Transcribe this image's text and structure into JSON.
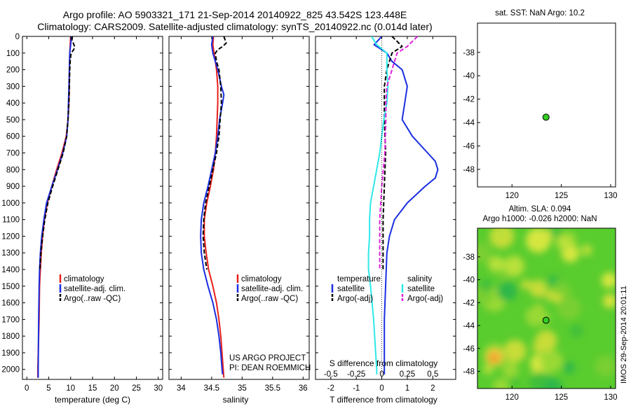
{
  "title_line1": "Argo profile: AO 5903321_171 21-Sep-2014 20140922_825 43.542S 123.448E",
  "title_line2": "Climatology: CARS2009. Satellite-adjusted climatology: synTS_20140922.nc (0.014d later)",
  "project_line1": "US ARGO PROJECT",
  "project_line2": "PI: DEAN ROEMMICH",
  "side_text": "IMOS 29-Sep-2014 20:01:11",
  "depth_ticks": [
    0,
    100,
    200,
    300,
    400,
    500,
    600,
    700,
    800,
    900,
    1000,
    1100,
    1200,
    1300,
    1400,
    1500,
    1600,
    1700,
    1800,
    1900,
    2000
  ],
  "colors": {
    "climatology": "#e8201c",
    "satellite": "#1a2ee0",
    "argo": "#000000",
    "salinity_sat": "#2ee8e8",
    "salinity_argo": "#e020e0",
    "marker": "#33cc22"
  },
  "chart_data": [
    {
      "type": "line",
      "xlabel": "temperature (deg C)",
      "xlim": [
        -1,
        31
      ],
      "xticks": [
        0,
        5,
        10,
        15,
        20,
        25,
        30
      ],
      "ylim": [
        2060,
        0
      ],
      "legend": [
        "climatology",
        "satellite-adj. clim.",
        "Argo(..raw -QC)"
      ],
      "series": [
        {
          "name": "climatology",
          "color": "#e8201c",
          "depth": [
            0,
            50,
            100,
            200,
            300,
            400,
            500,
            600,
            700,
            800,
            900,
            1000,
            1100,
            1200,
            1300,
            1400,
            1500,
            1700,
            2000,
            2050
          ],
          "values": [
            10.0,
            9.9,
            9.8,
            9.7,
            9.7,
            9.6,
            9.4,
            9.0,
            8.0,
            6.8,
            5.7,
            4.7,
            4.0,
            3.6,
            3.3,
            3.1,
            2.9,
            2.8,
            2.5,
            2.5
          ]
        },
        {
          "name": "satellite-adj. clim.",
          "color": "#1a2ee0",
          "depth": [
            0,
            50,
            100,
            200,
            300,
            400,
            500,
            600,
            700,
            800,
            900,
            1000,
            1100,
            1200,
            1300,
            1400,
            1500,
            1700,
            2000,
            2050
          ],
          "values": [
            10.2,
            10.0,
            9.8,
            9.7,
            9.6,
            9.5,
            9.4,
            9.1,
            8.2,
            7.0,
            5.7,
            4.5,
            3.9,
            3.4,
            3.1,
            2.9,
            2.8,
            2.7,
            2.6,
            2.6
          ]
        },
        {
          "name": "Argo(..raw -QC)",
          "color": "#000000",
          "dash": true,
          "depth": [
            0,
            20,
            40,
            60,
            80,
            100,
            150,
            200,
            300,
            400,
            500,
            600,
            700,
            800,
            900,
            1000,
            1100,
            1200,
            1300,
            1400
          ],
          "values": [
            10.4,
            10.3,
            10.6,
            10.9,
            10.7,
            10.1,
            9.9,
            9.8,
            9.7,
            9.6,
            9.4,
            9.1,
            8.3,
            7.1,
            5.9,
            4.8,
            4.1,
            3.6,
            3.2,
            3.0
          ]
        }
      ]
    },
    {
      "type": "line",
      "xlabel": "salinity",
      "xlim": [
        33.8,
        36.1
      ],
      "xticks": [
        34,
        34.5,
        35,
        35.5,
        36
      ],
      "ylim": [
        2060,
        0
      ],
      "legend": [
        "climatology",
        "satellite-adj. clim.",
        "Argo(..raw -QC)"
      ],
      "series": [
        {
          "name": "climatology",
          "color": "#e8201c",
          "depth": [
            0,
            50,
            100,
            150,
            200,
            300,
            400,
            500,
            600,
            700,
            800,
            900,
            1000,
            1100,
            1200,
            1300,
            1400,
            1500,
            1600,
            1700,
            1800,
            1900,
            2000,
            2050
          ],
          "values": [
            34.53,
            34.52,
            34.54,
            34.56,
            34.58,
            34.6,
            34.6,
            34.59,
            34.58,
            34.56,
            34.53,
            34.48,
            34.42,
            34.38,
            34.38,
            34.41,
            34.45,
            34.52,
            34.58,
            34.62,
            34.65,
            34.67,
            34.69,
            34.7
          ]
        },
        {
          "name": "satellite-adj. clim.",
          "color": "#1a2ee0",
          "depth": [
            0,
            50,
            100,
            150,
            200,
            300,
            350,
            400,
            500,
            600,
            700,
            800,
            900,
            1000,
            1100,
            1200,
            1300,
            1400,
            1500,
            1600,
            1700,
            1800,
            1900,
            2000,
            2030
          ],
          "values": [
            34.52,
            34.5,
            34.52,
            34.56,
            34.6,
            34.66,
            34.7,
            34.68,
            34.63,
            34.6,
            34.56,
            34.5,
            34.44,
            34.37,
            34.33,
            34.32,
            34.33,
            34.37,
            34.44,
            34.52,
            34.58,
            34.62,
            34.65,
            34.67,
            34.68
          ]
        },
        {
          "name": "Argo(..raw -QC)",
          "color": "#000000",
          "dash": true,
          "depth": [
            0,
            20,
            40,
            60,
            80,
            100,
            150,
            200,
            300,
            400,
            500,
            600,
            700,
            800,
            900,
            1000,
            1100,
            1200,
            1300,
            1400
          ],
          "values": [
            34.7,
            34.72,
            34.74,
            34.68,
            34.6,
            34.56,
            34.58,
            34.62,
            34.65,
            34.66,
            34.64,
            34.62,
            34.58,
            34.52,
            34.46,
            34.4,
            34.37,
            34.36,
            34.38,
            34.42
          ]
        }
      ]
    },
    {
      "type": "line",
      "xlabel": "T difference from climatology",
      "xlabel_top": "S difference from climatology",
      "xlim": [
        -2.6,
        2.9
      ],
      "xticks": [
        -2,
        -1,
        0,
        1,
        2
      ],
      "xticks_top": [
        "-0.5",
        "-0.25",
        "0",
        "0.25",
        "0.5"
      ],
      "ylim": [
        2060,
        0
      ],
      "legend_groups": [
        {
          "title": "temperature",
          "items": [
            "satellite",
            "Argo(-adj)"
          ]
        },
        {
          "title": "salinity",
          "items": [
            "satellite",
            "Argo(-adj)"
          ]
        }
      ],
      "series": [
        {
          "name": "T satellite",
          "color": "#1a2ee0",
          "depth": [
            0,
            50,
            100,
            150,
            200,
            300,
            400,
            500,
            600,
            700,
            750,
            800,
            850,
            900,
            1000,
            1100,
            1200,
            1300,
            1500,
            1700,
            1900,
            2000,
            2030
          ],
          "values": [
            0.0,
            -0.3,
            0.2,
            0.4,
            0.8,
            1.0,
            0.9,
            0.8,
            1.2,
            1.8,
            2.1,
            2.2,
            2.1,
            1.7,
            1.0,
            0.5,
            0.3,
            0.2,
            0.15,
            0.1,
            0.1,
            0.1,
            0.1
          ]
        },
        {
          "name": "T Argo(-adj)",
          "color": "#000000",
          "dash": true,
          "depth": [
            0,
            30,
            60,
            100,
            200,
            300,
            400,
            500,
            700,
            900,
            1100,
            1300,
            1400
          ],
          "values": [
            0.4,
            0.6,
            0.8,
            0.4,
            0.2,
            0.1,
            0.1,
            0.1,
            0.15,
            0.1,
            0.05,
            0.05,
            0.05
          ]
        },
        {
          "name": "S satellite",
          "color": "#2ee8e8",
          "depth": [
            0,
            50,
            100,
            200,
            300,
            400,
            500,
            600,
            700,
            800,
            900,
            1000,
            1100,
            1200,
            1300,
            1400,
            1500,
            1700,
            1900,
            2000,
            2030
          ],
          "values": [
            -0.1,
            -0.05,
            0.05,
            0.05,
            0.06,
            0.05,
            0.02,
            0.0,
            -0.02,
            -0.05,
            -0.08,
            -0.11,
            -0.12,
            -0.12,
            -0.13,
            -0.13,
            -0.11,
            -0.08,
            -0.06,
            -0.05,
            -0.05
          ]
        },
        {
          "name": "S Argo(-adj)",
          "color": "#e020e0",
          "dash": true,
          "depth": [
            0,
            30,
            60,
            100,
            200,
            300,
            400,
            500,
            700,
            900,
            1100,
            1300,
            1400
          ],
          "values": [
            0.35,
            0.3,
            0.25,
            0.15,
            0.1,
            0.05,
            0.04,
            0.04,
            0.03,
            0.0,
            -0.02,
            -0.02,
            -0.02
          ]
        }
      ]
    },
    {
      "type": "scatter",
      "title": "sat. SST: NaN Argo: 10.2",
      "xlim": [
        116.5,
        130.5
      ],
      "ylim": [
        -49.5,
        -35.5
      ],
      "xticks": [
        120,
        125,
        130
      ],
      "yticks": [
        -38,
        -40,
        -42,
        -44,
        -46,
        -48
      ],
      "points": [
        {
          "x": 123.448,
          "y": -43.542
        }
      ]
    },
    {
      "type": "heatmap",
      "title_line1": "Altim. SLA: 0.094",
      "title_line2": "Argo h1000: -0.026 h2000: NaN",
      "xlim": [
        116.5,
        130.5
      ],
      "ylim": [
        -49.5,
        -35.5
      ],
      "xticks": [
        120,
        125,
        130
      ],
      "yticks": [
        -38,
        -40,
        -42,
        -44,
        -46,
        -48
      ],
      "points": [
        {
          "x": 123.448,
          "y": -43.542
        }
      ]
    }
  ]
}
